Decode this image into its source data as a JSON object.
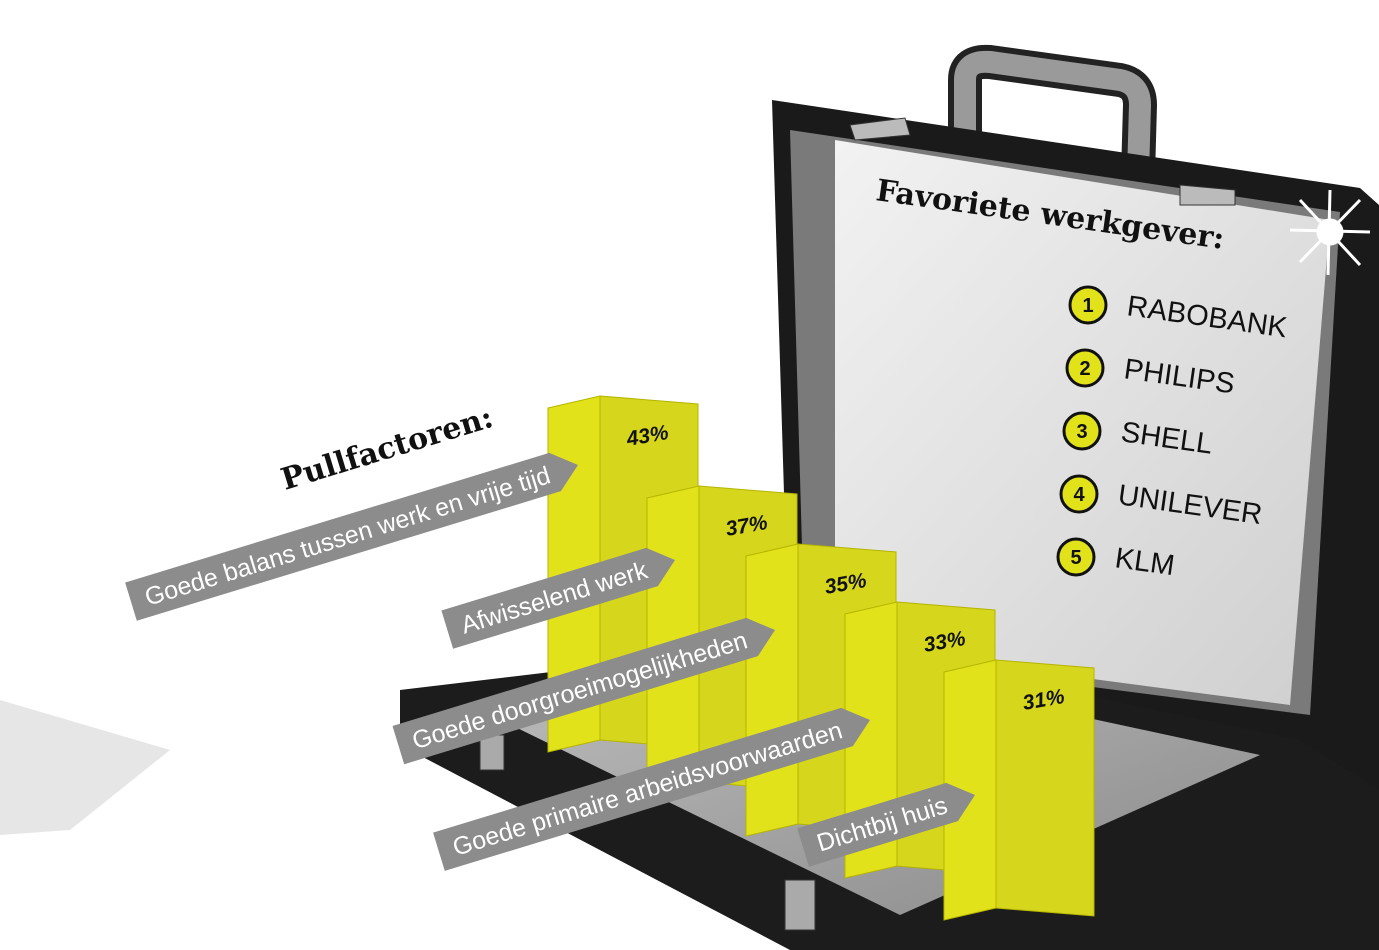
{
  "chart_data": {
    "type": "bar",
    "title": "Pullfactoren:",
    "categories": [
      "Goede balans tussen werk en vrije tijd",
      "Afwisselend werk",
      "Goede doorgroeimogelijkheden",
      "Goede primaire arbeidsvoorwaarden",
      "Dichtbij huis"
    ],
    "values": [
      43,
      37,
      35,
      33,
      31
    ],
    "value_labels": [
      "43%",
      "37%",
      "35%",
      "33%",
      "31%"
    ],
    "color": "#e2e21a"
  },
  "employers": {
    "title": "Favoriete werkgever:",
    "items": [
      {
        "rank": 1,
        "name": "RABOBANK"
      },
      {
        "rank": 2,
        "name": "PHILIPS"
      },
      {
        "rank": 3,
        "name": "SHELL"
      },
      {
        "rank": 4,
        "name": "UNILEVER"
      },
      {
        "rank": 5,
        "name": "KLM"
      }
    ]
  }
}
